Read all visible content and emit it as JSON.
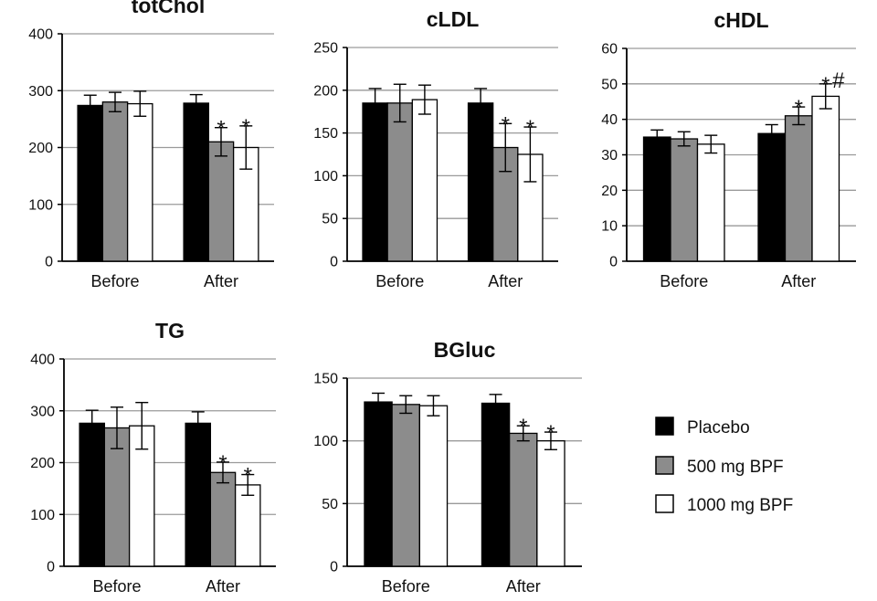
{
  "chart_data": [
    {
      "type": "bar",
      "title": "totChol",
      "categories": [
        "Before",
        "After"
      ],
      "ylim": [
        0,
        400
      ],
      "yticks": [
        0,
        100,
        200,
        300,
        400
      ],
      "grid": true,
      "series": [
        {
          "name": "Placebo",
          "values": [
            274,
            278
          ],
          "errors": [
            18,
            15
          ]
        },
        {
          "name": "500 mg BPF",
          "values": [
            280,
            210
          ],
          "errors": [
            17,
            25
          ]
        },
        {
          "name": "1000 mg BPF",
          "values": [
            277,
            200
          ],
          "errors": [
            22,
            38
          ]
        }
      ],
      "annotations": [
        {
          "category": "After",
          "series": "500 mg BPF",
          "text": "*"
        },
        {
          "category": "After",
          "series": "1000 mg BPF",
          "text": "*"
        }
      ]
    },
    {
      "type": "bar",
      "title": "cLDL",
      "categories": [
        "Before",
        "After"
      ],
      "ylim": [
        0,
        250
      ],
      "yticks": [
        0,
        50,
        100,
        150,
        200,
        250
      ],
      "grid": true,
      "series": [
        {
          "name": "Placebo",
          "values": [
            185,
            185
          ],
          "errors": [
            17,
            17
          ]
        },
        {
          "name": "500 mg BPF",
          "values": [
            185,
            133
          ],
          "errors": [
            22,
            28
          ]
        },
        {
          "name": "1000 mg BPF",
          "values": [
            189,
            125
          ],
          "errors": [
            17,
            32
          ]
        }
      ],
      "annotations": [
        {
          "category": "After",
          "series": "500 mg BPF",
          "text": "*"
        },
        {
          "category": "After",
          "series": "1000 mg BPF",
          "text": "*"
        }
      ]
    },
    {
      "type": "bar",
      "title": "cHDL",
      "categories": [
        "Before",
        "After"
      ],
      "ylim": [
        0,
        60
      ],
      "yticks": [
        0,
        10,
        20,
        30,
        40,
        50,
        60
      ],
      "grid": true,
      "series": [
        {
          "name": "Placebo",
          "values": [
            35,
            36
          ],
          "errors": [
            2,
            2.5
          ]
        },
        {
          "name": "500 mg BPF",
          "values": [
            34.5,
            41
          ],
          "errors": [
            2,
            2.5
          ]
        },
        {
          "name": "1000 mg BPF",
          "values": [
            33,
            46.5
          ],
          "errors": [
            2.5,
            3.5
          ]
        }
      ],
      "annotations": [
        {
          "category": "After",
          "series": "500 mg BPF",
          "text": "*"
        },
        {
          "category": "After",
          "series": "1000 mg BPF",
          "text": "*"
        },
        {
          "category": "After",
          "series": "1000 mg BPF",
          "text": "#"
        }
      ]
    },
    {
      "type": "bar",
      "title": "TG",
      "categories": [
        "Before",
        "After"
      ],
      "ylim": [
        0,
        400
      ],
      "yticks": [
        0,
        100,
        200,
        300,
        400
      ],
      "grid": true,
      "series": [
        {
          "name": "Placebo",
          "values": [
            276,
            276
          ],
          "errors": [
            25,
            22
          ]
        },
        {
          "name": "500 mg BPF",
          "values": [
            267,
            181
          ],
          "errors": [
            40,
            20
          ]
        },
        {
          "name": "1000 mg BPF",
          "values": [
            271,
            157
          ],
          "errors": [
            45,
            20
          ]
        }
      ],
      "annotations": [
        {
          "category": "After",
          "series": "500 mg BPF",
          "text": "*"
        },
        {
          "category": "After",
          "series": "1000 mg BPF",
          "text": "*"
        }
      ]
    },
    {
      "type": "bar",
      "title": "BGluc",
      "categories": [
        "Before",
        "After"
      ],
      "ylim": [
        0,
        150
      ],
      "yticks": [
        0,
        50,
        100,
        150
      ],
      "grid": true,
      "series": [
        {
          "name": "Placebo",
          "values": [
            131,
            130
          ],
          "errors": [
            7,
            7
          ]
        },
        {
          "name": "500 mg BPF",
          "values": [
            129,
            106
          ],
          "errors": [
            7,
            6
          ]
        },
        {
          "name": "1000 mg BPF",
          "values": [
            128,
            100
          ],
          "errors": [
            8,
            7
          ]
        }
      ],
      "annotations": [
        {
          "category": "After",
          "series": "500 mg BPF",
          "text": "*"
        },
        {
          "category": "After",
          "series": "1000 mg BPF",
          "text": "*"
        }
      ]
    }
  ],
  "legend": {
    "placement": "right",
    "items": [
      {
        "label": "Placebo",
        "color": "#000000"
      },
      {
        "label": "500 mg BPF",
        "color": "#8c8c8c"
      },
      {
        "label": "1000 mg BPF",
        "color": "#ffffff"
      }
    ]
  }
}
